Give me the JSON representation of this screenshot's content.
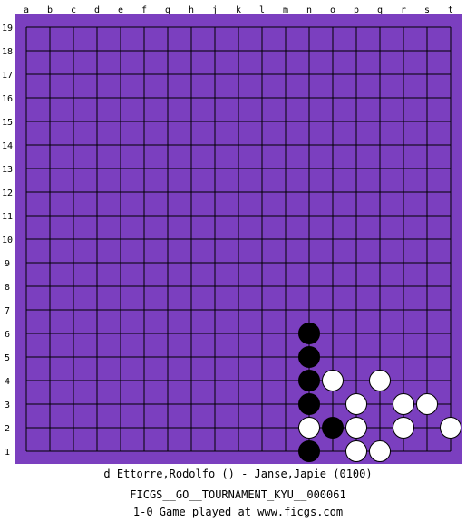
{
  "board": {
    "columns": [
      "a",
      "b",
      "c",
      "d",
      "e",
      "f",
      "g",
      "h",
      "j",
      "k",
      "l",
      "m",
      "n",
      "o",
      "p",
      "q",
      "r",
      "s",
      "t"
    ],
    "rows": [
      "19",
      "18",
      "17",
      "16",
      "15",
      "14",
      "13",
      "12",
      "11",
      "10",
      "9",
      "8",
      "7",
      "6",
      "5",
      "4",
      "3",
      "2",
      "1"
    ],
    "background_color": "#7B3FBF",
    "line_color": "#000000",
    "stones": [
      {
        "color": "black",
        "point": "n6"
      },
      {
        "color": "black",
        "point": "n5"
      },
      {
        "color": "black",
        "point": "n4"
      },
      {
        "color": "black",
        "point": "n3"
      },
      {
        "color": "black",
        "point": "o2"
      },
      {
        "color": "black",
        "point": "n1"
      },
      {
        "color": "white",
        "point": "o4"
      },
      {
        "color": "white",
        "point": "q4"
      },
      {
        "color": "white",
        "point": "p3"
      },
      {
        "color": "white",
        "point": "r3"
      },
      {
        "color": "white",
        "point": "s3"
      },
      {
        "color": "white",
        "point": "n2"
      },
      {
        "color": "white",
        "point": "p2"
      },
      {
        "color": "white",
        "point": "r2"
      },
      {
        "color": "white",
        "point": "t2"
      },
      {
        "color": "white",
        "point": "p1"
      },
      {
        "color": "white",
        "point": "q1"
      }
    ]
  },
  "game_info": {
    "players": "d Ettorre,Rodolfo () - Janse,Japie (0100)",
    "event": "FICGS__GO__TOURNAMENT_KYU__000061",
    "result_line": "1-0   Game played at www.ficgs.com"
  }
}
